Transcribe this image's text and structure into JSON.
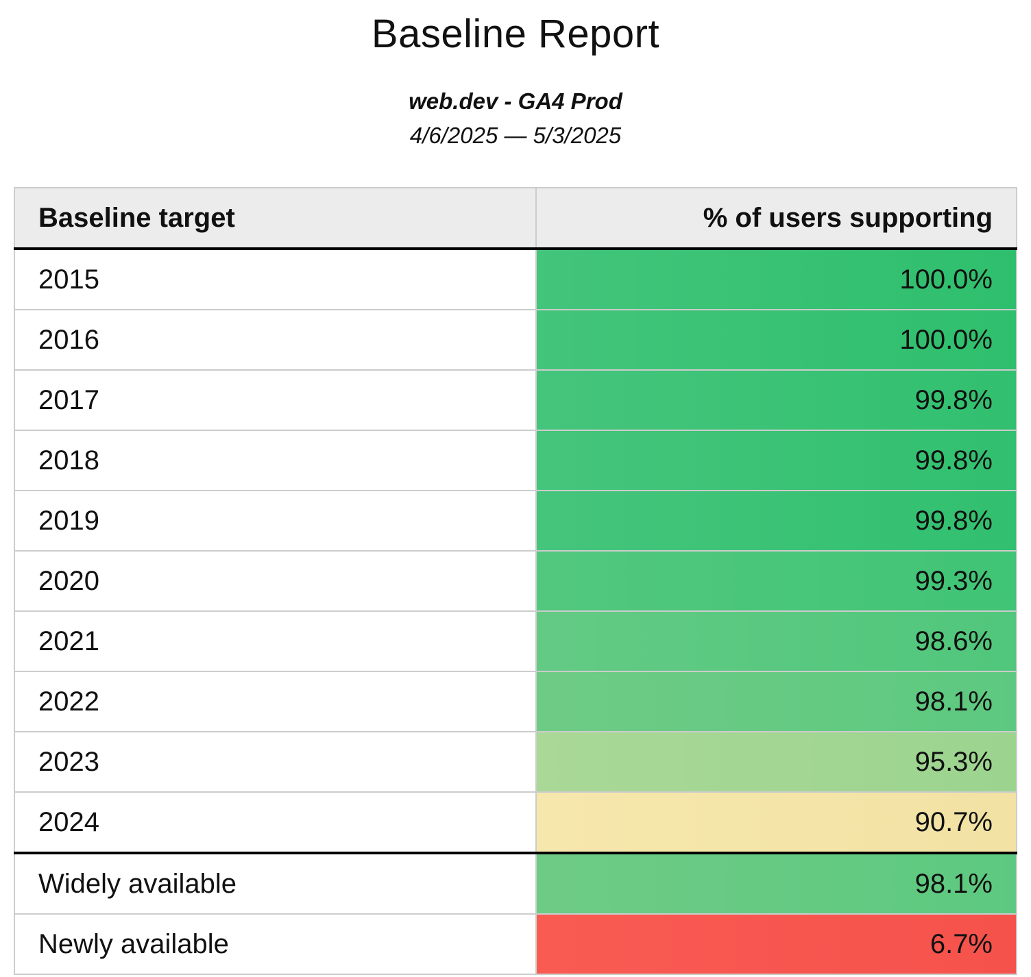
{
  "report": {
    "title": "Baseline Report",
    "subtitle": "web.dev - GA4 Prod",
    "date_range": "4/6/2025 — 5/3/2025"
  },
  "table": {
    "columns": [
      {
        "label": "Baseline target"
      },
      {
        "label": "% of users supporting"
      }
    ],
    "rows": [
      {
        "target": "2015",
        "value": "100.0%",
        "group": "year",
        "bg_left": "#43c57b",
        "bg_right": "#2ebf6d"
      },
      {
        "target": "2016",
        "value": "100.0%",
        "group": "year",
        "bg_left": "#43c57b",
        "bg_right": "#2ebf6d"
      },
      {
        "target": "2017",
        "value": "99.8%",
        "group": "year",
        "bg_left": "#45c57c",
        "bg_right": "#31c06f"
      },
      {
        "target": "2018",
        "value": "99.8%",
        "group": "year",
        "bg_left": "#45c57c",
        "bg_right": "#31c06f"
      },
      {
        "target": "2019",
        "value": "99.8%",
        "group": "year",
        "bg_left": "#45c57c",
        "bg_right": "#31c06f"
      },
      {
        "target": "2020",
        "value": "99.3%",
        "group": "year",
        "bg_left": "#52c87e",
        "bg_right": "#40c476"
      },
      {
        "target": "2021",
        "value": "98.6%",
        "group": "year",
        "bg_left": "#63ca84",
        "bg_right": "#50c77c"
      },
      {
        "target": "2022",
        "value": "98.1%",
        "group": "year",
        "bg_left": "#6ecb86",
        "bg_right": "#5dc980"
      },
      {
        "target": "2023",
        "value": "95.3%",
        "group": "year",
        "bg_left": "#aad896",
        "bg_right": "#9bd48f"
      },
      {
        "target": "2024",
        "value": "90.7%",
        "group": "year",
        "bg_left": "#f6e7ac",
        "bg_right": "#f2e2a4"
      },
      {
        "target": "Widely available",
        "value": "98.1%",
        "group": "status",
        "bg_left": "#6ecb86",
        "bg_right": "#5dc980"
      },
      {
        "target": "Newly available",
        "value": "6.7%",
        "group": "status",
        "bg_left": "#f95b53",
        "bg_right": "#f5524c"
      }
    ]
  },
  "colors": {
    "header_bg": "#ececec",
    "grid_line": "#cccccc",
    "section_line": "#000000"
  }
}
